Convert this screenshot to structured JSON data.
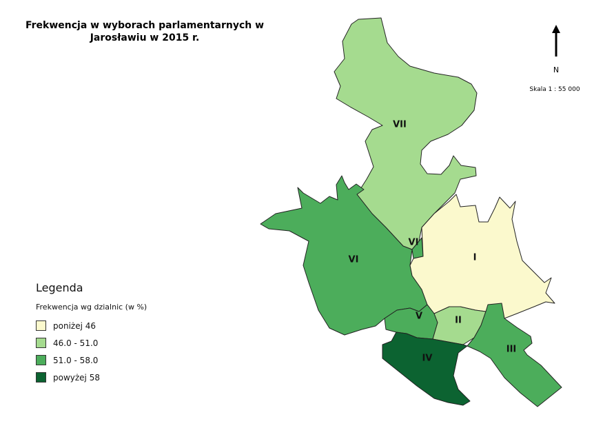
{
  "map": {
    "title_line1": "Frekwencja w wyborach parlamentarnych w",
    "title_line2": "Jarosławiu w 2015 r.",
    "north_label": "N",
    "scale_label": "Skala 1 : 55 000"
  },
  "legend": {
    "title": "Legenda",
    "subtitle": "Frekwencja wg dzialnic (w %)",
    "classes": [
      {
        "label": "poniżej 46",
        "color": "#fbf9cd"
      },
      {
        "label": "46.0 - 51.0",
        "color": "#a5db8f"
      },
      {
        "label": "51.0 - 58.0",
        "color": "#4cad5b"
      },
      {
        "label": "powyżej 58",
        "color": "#0c6331"
      }
    ]
  },
  "districts": [
    {
      "id": "I",
      "label": "I",
      "turnout_class": "poniżej 46"
    },
    {
      "id": "II",
      "label": "II",
      "turnout_class": "46.0 - 51.0"
    },
    {
      "id": "III",
      "label": "III",
      "turnout_class": "51.0 - 58.0"
    },
    {
      "id": "IV",
      "label": "IV",
      "turnout_class": "powyżej 58"
    },
    {
      "id": "V",
      "label": "V",
      "turnout_class": "51.0 - 58.0"
    },
    {
      "id": "VI",
      "label": "VI",
      "turnout_class": "51.0 - 58.0"
    },
    {
      "id": "VI-small",
      "label": "VI",
      "turnout_class": "51.0 - 58.0"
    },
    {
      "id": "VII",
      "label": "VII",
      "turnout_class": "46.0 - 51.0"
    }
  ]
}
